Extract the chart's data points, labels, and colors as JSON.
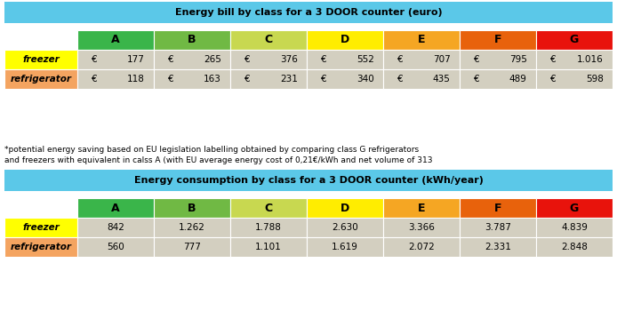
{
  "title1": "Energy bill by class for a 3 DOOR counter (euro)",
  "title2": "Energy consumption by class for a 3 DOOR counter (kWh/year)",
  "footnote_line1": "*potential energy saving based on EU legislation labelling obtained by comparing class G refrigerators",
  "footnote_line2": "and freezers with equivalent in calss A (with EU average energy cost of 0,21€/kWh and net volume of 313",
  "classes": [
    "A",
    "B",
    "C",
    "D",
    "E",
    "F",
    "G"
  ],
  "class_colors": [
    "#3ab54a",
    "#70b944",
    "#c8d850",
    "#ffed00",
    "#f5a623",
    "#e8620c",
    "#e8130c"
  ],
  "row_labels": [
    "freezer",
    "refrigerator"
  ],
  "row_colors": [
    "#ffff00",
    "#f4a460"
  ],
  "data_cell_bg": "#d3cfc0",
  "header_bg": "#5bc8e8",
  "table1_freezer": [
    "177",
    "265",
    "376",
    "552",
    "707",
    "795",
    "1.016"
  ],
  "table1_refrigerator": [
    "118",
    "163",
    "231",
    "340",
    "435",
    "489",
    "598"
  ],
  "table2_freezer": [
    "842",
    "1.262",
    "1.788",
    "2.630",
    "3.366",
    "3.787",
    "4.839"
  ],
  "table2_refrigerator": [
    "560",
    "777",
    "1.101",
    "1.619",
    "2.072",
    "2.331",
    "2.848"
  ],
  "euro_sign": "€",
  "fig_width": 6.94,
  "fig_height": 3.59,
  "fig_dpi": 100
}
